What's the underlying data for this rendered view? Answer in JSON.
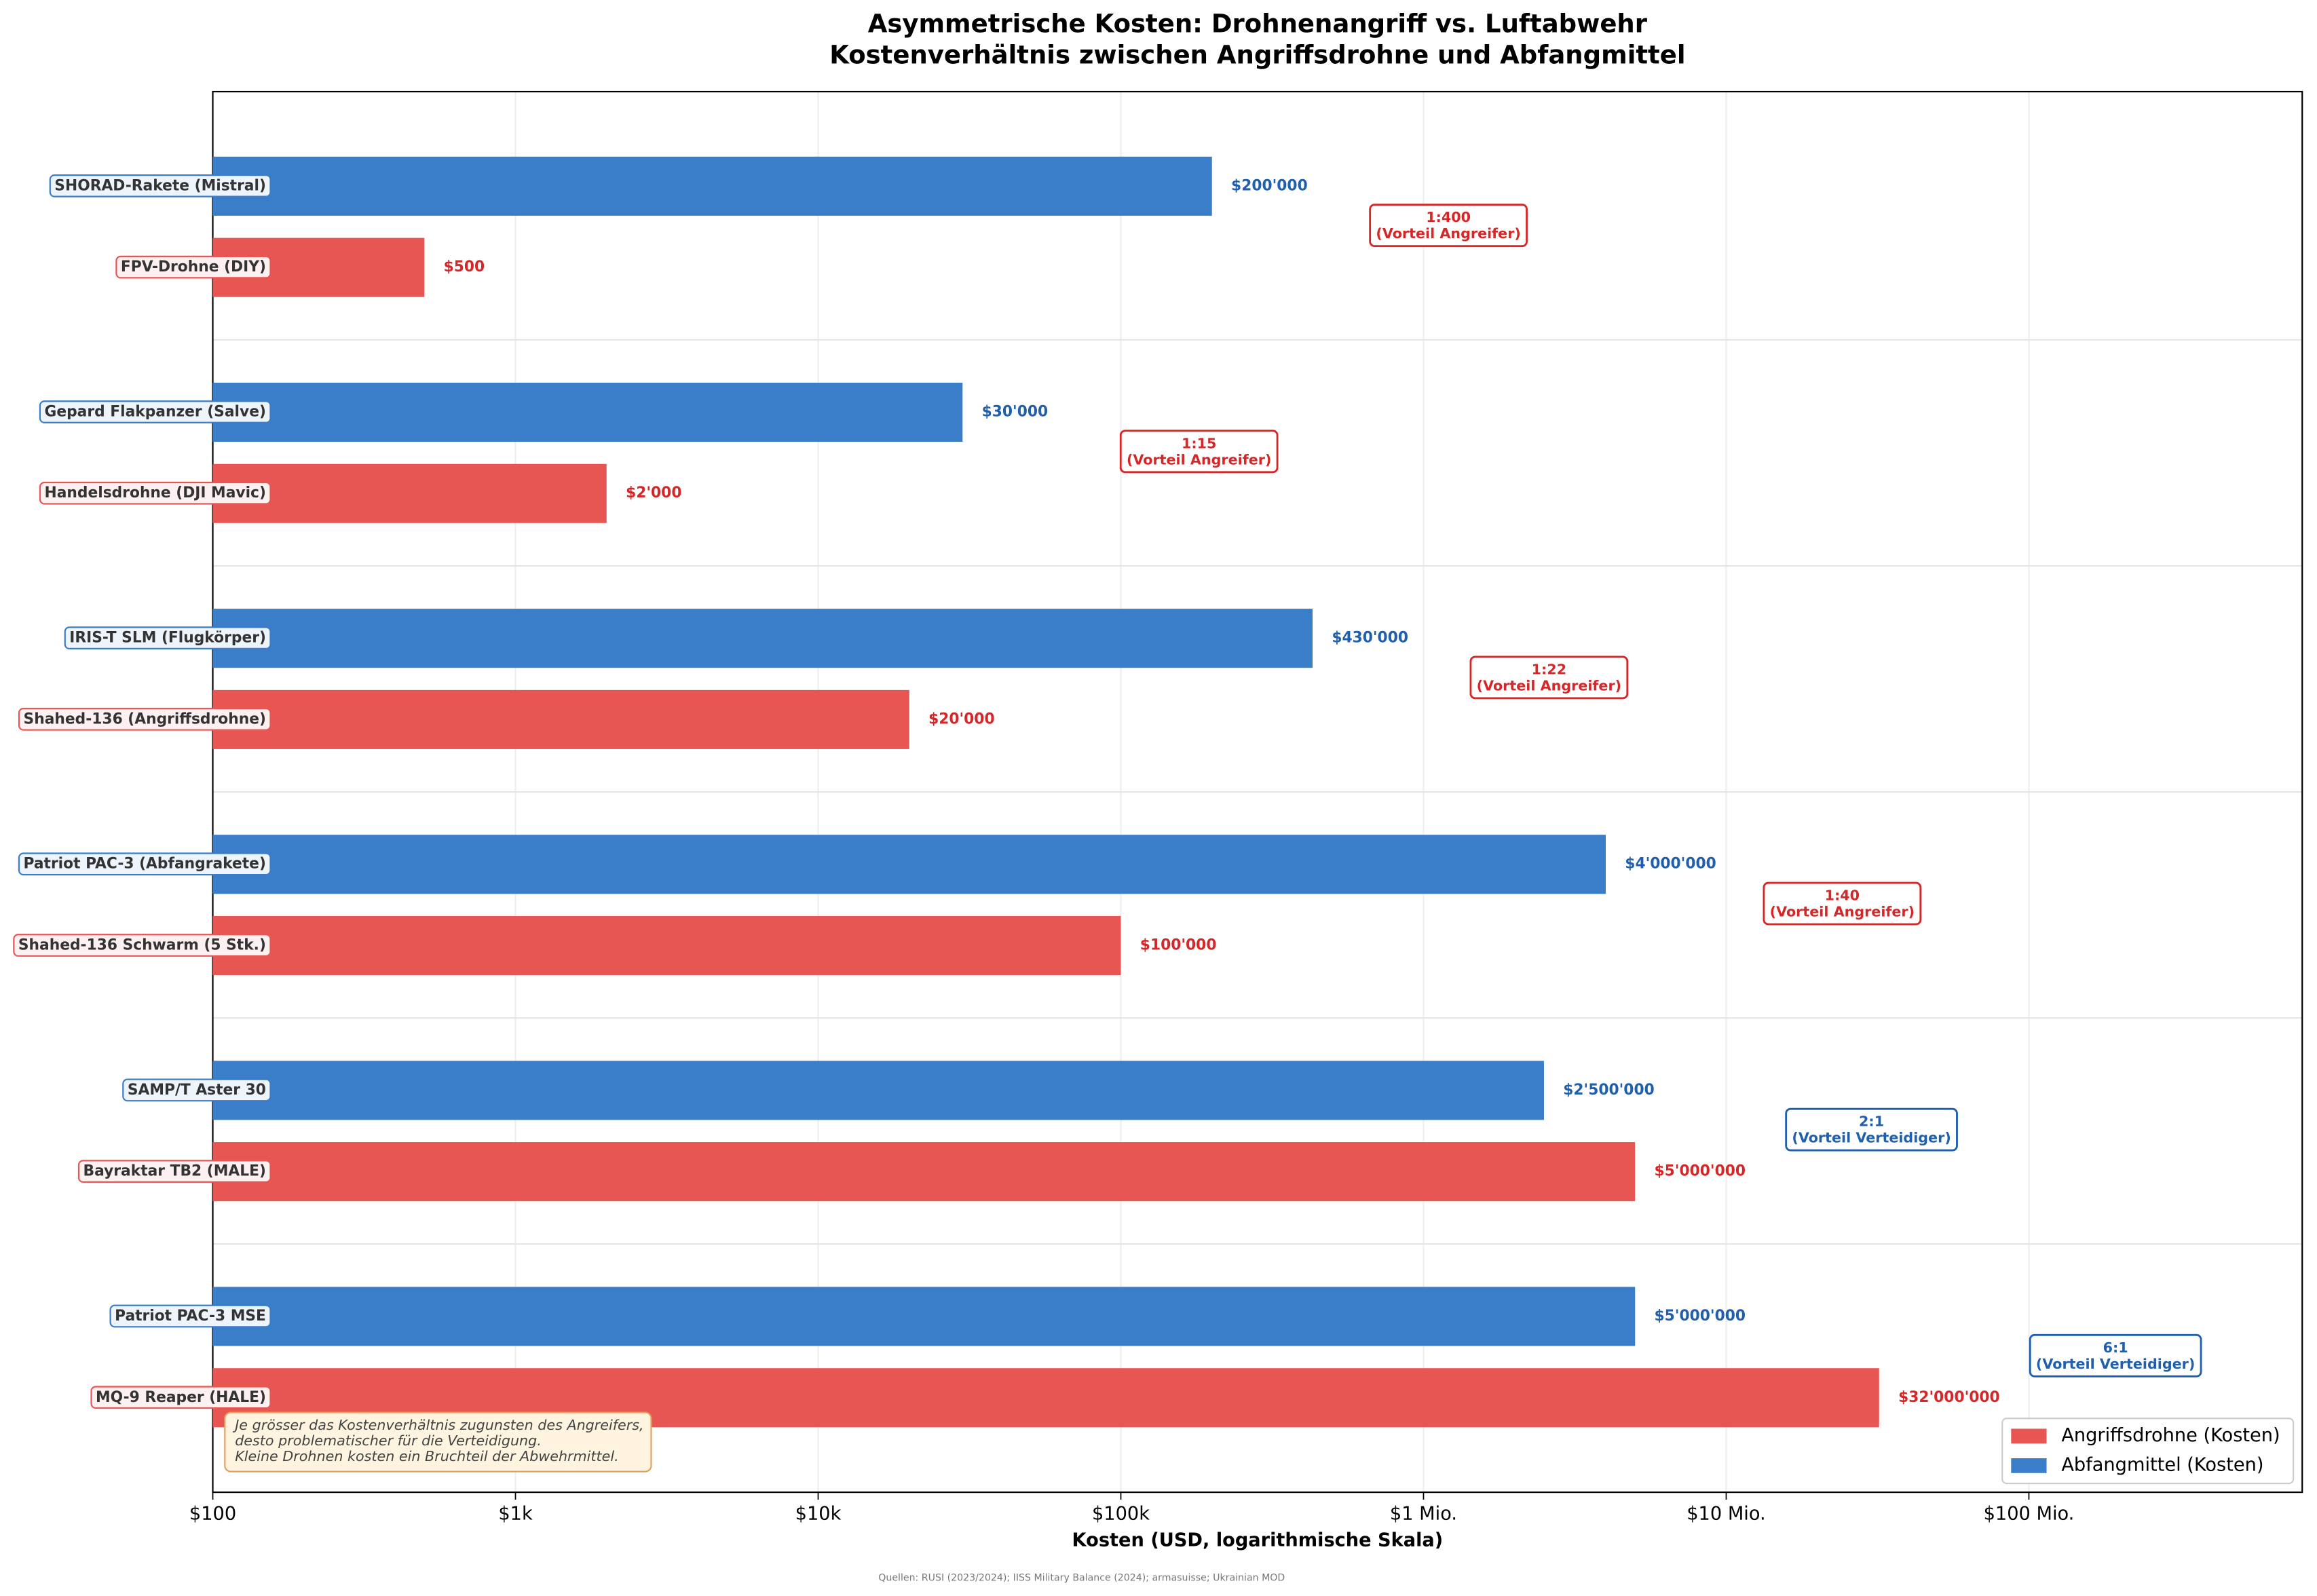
{
  "chart_data": {
    "type": "bar",
    "orientation": "horizontal",
    "title": "Asymmetrische Kosten: Drohnenangriff vs. Luftabwehr",
    "subtitle": "Kostenverhältnis zwischen Angriffsdrohne und Abfangmittel",
    "xlabel": "Kosten (USD, logarithmische Skala)",
    "xscale": "log",
    "xlim": [
      100,
      800000000
    ],
    "xticks": [
      {
        "value": 100,
        "label": "$100"
      },
      {
        "value": 1000,
        "label": "$1k"
      },
      {
        "value": 10000,
        "label": "$10k"
      },
      {
        "value": 100000,
        "label": "$100k"
      },
      {
        "value": 1000000,
        "label": "$1 Mio."
      },
      {
        "value": 10000000,
        "label": "$10 Mio."
      },
      {
        "value": 100000000,
        "label": "$100 Mio."
      }
    ],
    "grid": true,
    "legend": "lower right",
    "series": [
      {
        "name": "Angriffsdrohne (Kosten)",
        "color": "#e85654",
        "label_color": "#d62728",
        "categories": [
          "FPV-Drohne (DIY)",
          "Handelsdrohne (DJI Mavic)",
          "Shahed-136 (Angriffsdrohne)",
          "Shahed-136 Schwarm (5 Stk.)",
          "Bayraktar TB2 (MALE)",
          "MQ-9 Reaper (HALE)"
        ],
        "values": [
          500,
          2000,
          20000,
          100000,
          5000000,
          32000000
        ],
        "value_labels": [
          "$500",
          "$2'000",
          "$20'000",
          "$100'000",
          "$5'000'000",
          "$32'000'000"
        ]
      },
      {
        "name": "Abfangmittel (Kosten)",
        "color": "#3a7dc9",
        "label_color": "#1f5fad",
        "categories": [
          "SHORAD-Rakete (Mistral)",
          "Gepard Flakpanzer (Salve)",
          "IRIS-T SLM (Flugkörper)",
          "Patriot PAC-3 (Abfangrakete)",
          "SAMP/T Aster 30",
          "Patriot PAC-3 MSE"
        ],
        "values": [
          200000,
          30000,
          430000,
          4000000,
          2500000,
          5000000
        ],
        "value_labels": [
          "$200'000",
          "$30'000",
          "$430'000",
          "$4'000'000",
          "$2'500'000",
          "$5'000'000"
        ]
      }
    ],
    "annotations": [
      {
        "ratio": "1:400",
        "label": "(Vorteil Angreifer)",
        "color": "#d62728"
      },
      {
        "ratio": "1:15",
        "label": "(Vorteil Angreifer)",
        "color": "#d62728"
      },
      {
        "ratio": "1:22",
        "label": "(Vorteil Angreifer)",
        "color": "#d62728"
      },
      {
        "ratio": "1:40",
        "label": "(Vorteil Angreifer)",
        "color": "#d62728"
      },
      {
        "ratio": "2:1",
        "label": "(Vorteil Verteidiger)",
        "color": "#1f5fad"
      },
      {
        "ratio": "6:1",
        "label": "(Vorteil Verteidiger)",
        "color": "#1f5fad"
      }
    ],
    "note": [
      "Je grösser das Kostenverhältnis zugunsten des Angreifers,",
      "desto problematischer für die Verteidigung.",
      "Kleine Drohnen kosten ein Bruchteil der Abwehrmittel."
    ],
    "source": "Quellen: RUSI (2023/2024); IISS Military Balance (2024); armasuisse; Ukrainian MOD"
  }
}
